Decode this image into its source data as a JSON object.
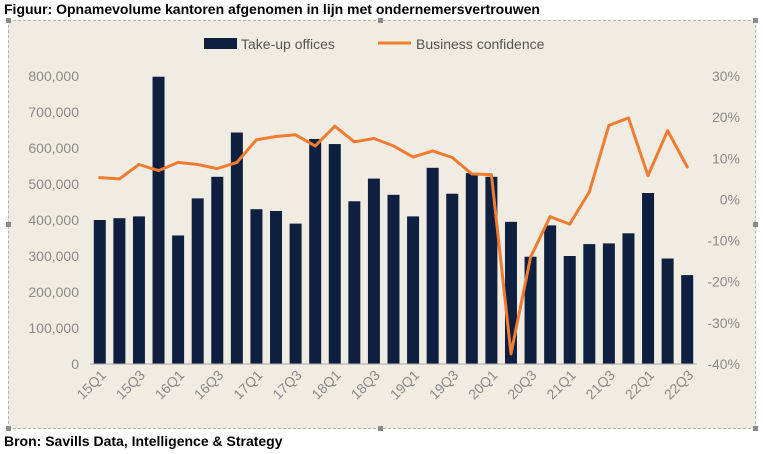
{
  "header": {
    "title": "Figuur: Opnamevolume kantoren afgenomen in lijn met ondernemersvertrouwen"
  },
  "footer": {
    "source": "Bron: Savills Data, Intelligence & Strategy"
  },
  "colors": {
    "background": "#f1ece1",
    "bar": "#0e1f40",
    "line": "#f07c32",
    "axis_text": "#8a8a8a"
  },
  "chart_data": {
    "type": "bar+line",
    "title": "Opnamevolume kantoren afgenomen in lijn met ondernemersvertrouwen",
    "categories": [
      "15Q1",
      "15Q2",
      "15Q3",
      "15Q4",
      "16Q1",
      "16Q2",
      "16Q3",
      "16Q4",
      "17Q1",
      "17Q2",
      "17Q3",
      "17Q4",
      "18Q1",
      "18Q2",
      "18Q3",
      "18Q4",
      "19Q1",
      "19Q2",
      "19Q3",
      "19Q4",
      "20Q1",
      "20Q2",
      "20Q3",
      "20Q4",
      "21Q1",
      "21Q2",
      "21Q3",
      "21Q4",
      "22Q1",
      "22Q2",
      "22Q3"
    ],
    "x_tick_labels": [
      "15Q1",
      "15Q3",
      "16Q1",
      "16Q3",
      "17Q1",
      "17Q3",
      "18Q1",
      "18Q3",
      "19Q1",
      "19Q3",
      "20Q1",
      "20Q3",
      "21Q1",
      "21Q3",
      "22Q1",
      "22Q3"
    ],
    "series": [
      {
        "name": "Take-up offices",
        "type": "bar",
        "axis": "left",
        "values": [
          400000,
          405000,
          410000,
          798000,
          357000,
          460000,
          520000,
          643000,
          430000,
          425000,
          390000,
          625000,
          611000,
          452000,
          515000,
          470000,
          410000,
          545000,
          473000,
          530000,
          520000,
          395000,
          298000,
          385000,
          300000,
          333000,
          335000,
          363000,
          475000,
          293000,
          247000
        ]
      },
      {
        "name": "Business confidence",
        "type": "line",
        "axis": "right",
        "values": [
          5.3,
          5.0,
          8.5,
          7.0,
          9.0,
          8.5,
          7.5,
          9.0,
          14.5,
          15.3,
          15.7,
          13.0,
          17.8,
          14.0,
          14.8,
          13.0,
          10.3,
          11.8,
          10.2,
          6.2,
          6.0,
          -37.5,
          -14.0,
          -4.2,
          -6.0,
          1.8,
          18.0,
          19.8,
          5.8,
          16.7,
          7.9
        ]
      }
    ],
    "y_left": {
      "ticks": [
        "0",
        "100,000",
        "200,000",
        "300,000",
        "400,000",
        "500,000",
        "600,000",
        "700,000",
        "800,000"
      ],
      "min": 0,
      "max": 800000,
      "step": 100000
    },
    "y_right": {
      "ticks": [
        "-40%",
        "-30%",
        "-20%",
        "-10%",
        "0%",
        "10%",
        "20%",
        "30%"
      ],
      "min": -40,
      "max": 30,
      "step": 10
    },
    "legend": {
      "position": "top-center",
      "items": [
        "Take-up offices",
        "Business confidence"
      ]
    },
    "grid": false
  }
}
